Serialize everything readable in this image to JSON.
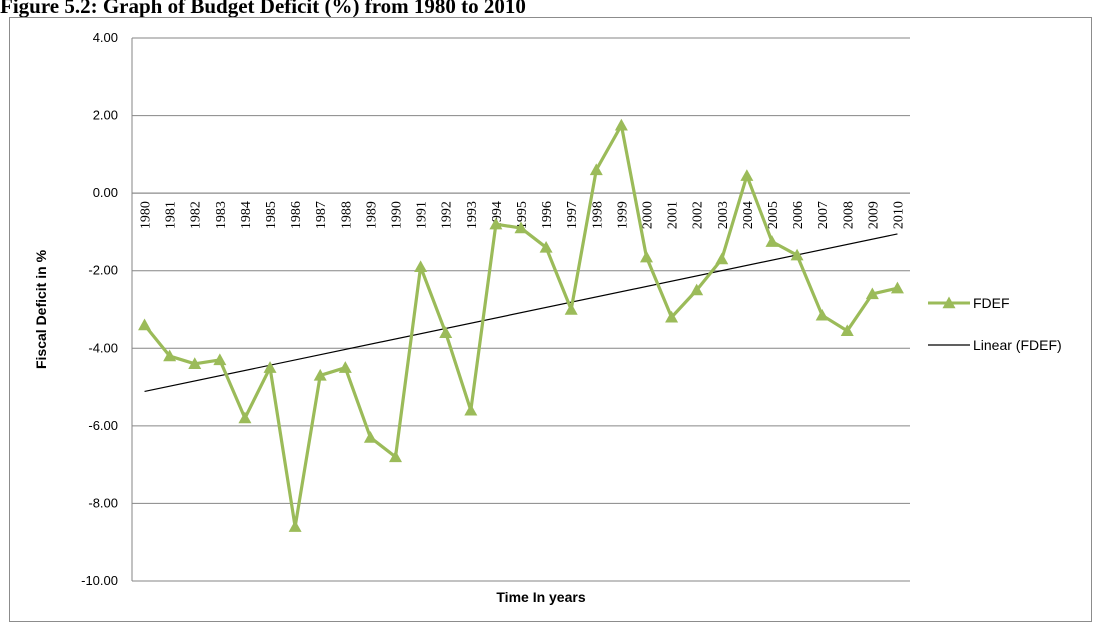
{
  "caption": "Figure 5.2: Graph of Budget Deficit (%) from 1980 to 2010",
  "chart_data": {
    "type": "line",
    "title": "",
    "xlabel": "Time In years",
    "ylabel": "Fiscal Deficit in %",
    "ylim": [
      -10,
      4
    ],
    "yticks": [
      "4.00",
      "2.00",
      "0.00",
      "-2.00",
      "-4.00",
      "-6.00",
      "-8.00",
      "-10.00"
    ],
    "categories": [
      "1980",
      "1981",
      "1982",
      "1983",
      "1984",
      "1985",
      "1986",
      "1987",
      "1988",
      "1989",
      "1990",
      "1991",
      "1992",
      "1993",
      "1994",
      "1995",
      "1996",
      "1997",
      "1998",
      "1999",
      "2000",
      "2001",
      "2002",
      "2003",
      "2004",
      "2005",
      "2006",
      "2007",
      "2008",
      "2009",
      "2010"
    ],
    "series": [
      {
        "name": "FDEF",
        "color": "#9bbb59",
        "marker": "triangle",
        "values": [
          -3.4,
          -4.2,
          -4.4,
          -4.3,
          -5.8,
          -4.5,
          -8.6,
          -4.7,
          -4.5,
          -6.3,
          -6.8,
          -1.9,
          -3.6,
          -5.6,
          -0.8,
          -0.9,
          -1.4,
          -3.0,
          0.6,
          1.75,
          -1.65,
          -3.2,
          -2.5,
          -1.7,
          0.45,
          -1.25,
          -1.6,
          -3.15,
          -3.55,
          -2.6,
          -2.45
        ]
      }
    ],
    "trendline": {
      "name": "Linear (FDEF)",
      "color": "#000000",
      "type": "linear"
    },
    "grid": true,
    "legend_position": "right"
  }
}
